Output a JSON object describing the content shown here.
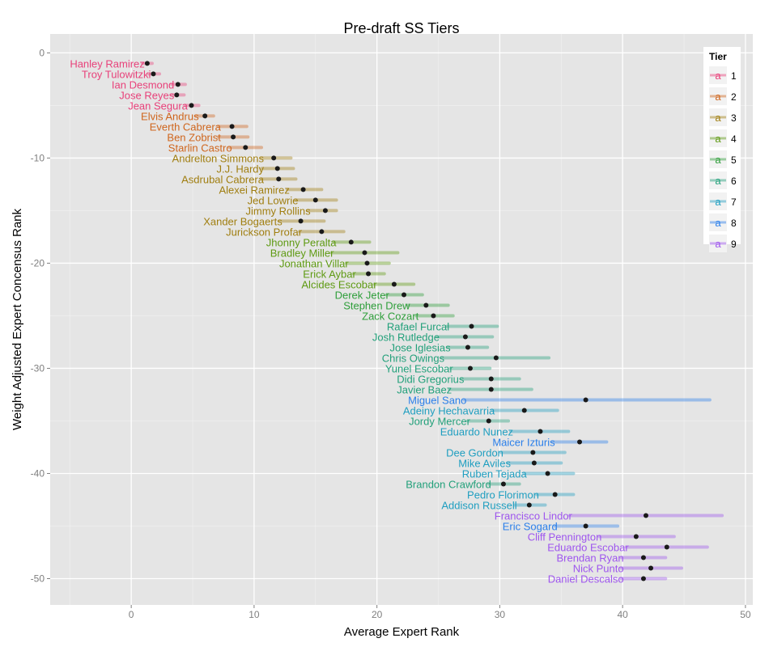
{
  "chart_data": {
    "type": "scatter",
    "title": "Pre-draft SS Tiers",
    "xlabel": "Average Expert Rank",
    "ylabel": "Weight Adjusted Expert Concensus Rank",
    "xlim": [
      -6.6,
      50.6
    ],
    "ylim": [
      -52.5,
      1.8
    ],
    "xticks": [
      0,
      10,
      20,
      30,
      40,
      50
    ],
    "yticks": [
      0,
      -10,
      -20,
      -30,
      -40,
      -50
    ],
    "grid": true,
    "legend": {
      "title": "Tier",
      "placement": "top-right",
      "key_glyph": "a",
      "entries": [
        "1",
        "2",
        "3",
        "4",
        "5",
        "6",
        "7",
        "8",
        "9"
      ]
    },
    "tier_colors": {
      "1": "#E8417A",
      "2": "#CF651C",
      "3": "#A07E10",
      "4": "#5E9A12",
      "5": "#2E9E3A",
      "6": "#22A07A",
      "7": "#1E9EC0",
      "8": "#2A7FEA",
      "9": "#9E55EE"
    },
    "points": [
      {
        "name": "Hanley Ramirez",
        "tier": "1",
        "rank": -1,
        "avg": 1.3,
        "min": 0.9,
        "max": 1.7
      },
      {
        "name": "Troy Tulowitzki",
        "tier": "1",
        "rank": -2,
        "avg": 1.8,
        "min": 1.4,
        "max": 2.3
      },
      {
        "name": "Ian Desmond",
        "tier": "1",
        "rank": -3,
        "avg": 3.8,
        "min": 3.3,
        "max": 4.4
      },
      {
        "name": "Jose Reyes",
        "tier": "1",
        "rank": -4,
        "avg": 3.7,
        "min": 3.3,
        "max": 4.3
      },
      {
        "name": "Jean Segura",
        "tier": "1",
        "rank": -5,
        "avg": 4.9,
        "min": 4.4,
        "max": 5.5
      },
      {
        "name": "Elvis Andrus",
        "tier": "2",
        "rank": -6,
        "avg": 6.0,
        "min": 5.3,
        "max": 6.7
      },
      {
        "name": "Everth Cabrera",
        "tier": "2",
        "rank": -7,
        "avg": 8.2,
        "min": 7.1,
        "max": 9.4
      },
      {
        "name": "Ben Zobrist",
        "tier": "2",
        "rank": -8,
        "avg": 8.3,
        "min": 7.1,
        "max": 9.5
      },
      {
        "name": "Starlin Castro",
        "tier": "2",
        "rank": -9,
        "avg": 9.3,
        "min": 8.0,
        "max": 10.6
      },
      {
        "name": "Andrelton Simmons",
        "tier": "3",
        "rank": -10,
        "avg": 11.6,
        "min": 10.6,
        "max": 13.0
      },
      {
        "name": "J.J. Hardy",
        "tier": "3",
        "rank": -11,
        "avg": 11.9,
        "min": 10.6,
        "max": 13.2
      },
      {
        "name": "Asdrubal Cabrera",
        "tier": "3",
        "rank": -12,
        "avg": 12.0,
        "min": 10.6,
        "max": 13.4
      },
      {
        "name": "Alexei Ramirez",
        "tier": "3",
        "rank": -13,
        "avg": 14.0,
        "min": 12.7,
        "max": 15.5
      },
      {
        "name": "Jed Lowrie",
        "tier": "3",
        "rank": -14,
        "avg": 15.0,
        "min": 13.4,
        "max": 16.7
      },
      {
        "name": "Jimmy Rollins",
        "tier": "3",
        "rank": -15,
        "avg": 15.8,
        "min": 14.4,
        "max": 16.7
      },
      {
        "name": "Xander Bogaerts",
        "tier": "3",
        "rank": -16,
        "avg": 13.8,
        "min": 12.1,
        "max": 15.7
      },
      {
        "name": "Jurickson Profar",
        "tier": "3",
        "rank": -17,
        "avg": 15.5,
        "min": 13.7,
        "max": 17.3
      },
      {
        "name": "Jhonny Peralta",
        "tier": "4",
        "rank": -18,
        "avg": 17.9,
        "min": 16.5,
        "max": 19.4
      },
      {
        "name": "Bradley Miller",
        "tier": "4",
        "rank": -19,
        "avg": 19.0,
        "min": 16.3,
        "max": 21.7
      },
      {
        "name": "Jonathan Villar",
        "tier": "4",
        "rank": -20,
        "avg": 19.2,
        "min": 17.5,
        "max": 21.0
      },
      {
        "name": "Erick Aybar",
        "tier": "4",
        "rank": -21,
        "avg": 19.3,
        "min": 18.1,
        "max": 20.6
      },
      {
        "name": "Alcides Escobar",
        "tier": "4",
        "rank": -22,
        "avg": 21.4,
        "min": 19.8,
        "max": 23.0
      },
      {
        "name": "Derek Jeter",
        "tier": "5",
        "rank": -23,
        "avg": 22.2,
        "min": 20.8,
        "max": 23.7
      },
      {
        "name": "Stephen Drew",
        "tier": "5",
        "rank": -24,
        "avg": 24.0,
        "min": 22.5,
        "max": 25.8
      },
      {
        "name": "Zack Cozart",
        "tier": "5",
        "rank": -25,
        "avg": 24.6,
        "min": 23.2,
        "max": 26.2
      },
      {
        "name": "Rafael Furcal",
        "tier": "6",
        "rank": -26,
        "avg": 27.7,
        "min": 25.7,
        "max": 29.8
      },
      {
        "name": "Josh Rutledge",
        "tier": "6",
        "rank": -27,
        "avg": 27.2,
        "min": 24.9,
        "max": 29.4
      },
      {
        "name": "Jose Iglesias",
        "tier": "6",
        "rank": -28,
        "avg": 27.4,
        "min": 25.8,
        "max": 29.0
      },
      {
        "name": "Chris Owings",
        "tier": "6",
        "rank": -29,
        "avg": 29.7,
        "min": 25.3,
        "max": 34.0
      },
      {
        "name": "Yunel Escobar",
        "tier": "6",
        "rank": -30,
        "avg": 27.6,
        "min": 26.0,
        "max": 29.2
      },
      {
        "name": "Didi Gregorius",
        "tier": "6",
        "rank": -31,
        "avg": 29.3,
        "min": 26.9,
        "max": 31.6
      },
      {
        "name": "Javier Baez",
        "tier": "6",
        "rank": -32,
        "avg": 29.3,
        "min": 25.9,
        "max": 32.6
      },
      {
        "name": "Miguel Sano",
        "tier": "8",
        "rank": -33,
        "avg": 37.0,
        "min": 27.1,
        "max": 47.1
      },
      {
        "name": "Adeiny Hechavarria",
        "tier": "7",
        "rank": -34,
        "avg": 32.0,
        "min": 29.4,
        "max": 34.7
      },
      {
        "name": "Jordy Mercer",
        "tier": "6",
        "rank": -35,
        "avg": 29.1,
        "min": 27.4,
        "max": 30.7
      },
      {
        "name": "Eduardo Nunez",
        "tier": "7",
        "rank": -36,
        "avg": 33.3,
        "min": 30.9,
        "max": 35.6
      },
      {
        "name": "Maicer Izturis",
        "tier": "8",
        "rank": -37,
        "avg": 36.5,
        "min": 34.3,
        "max": 38.7
      },
      {
        "name": "Dee Gordon",
        "tier": "7",
        "rank": -38,
        "avg": 32.7,
        "min": 30.1,
        "max": 35.3
      },
      {
        "name": "Mike Aviles",
        "tier": "7",
        "rank": -39,
        "avg": 32.8,
        "min": 30.7,
        "max": 35.0
      },
      {
        "name": "Ruben Tejada",
        "tier": "7",
        "rank": -40,
        "avg": 33.9,
        "min": 32.0,
        "max": 36.0
      },
      {
        "name": "Brandon Crawford",
        "tier": "6",
        "rank": -41,
        "avg": 30.3,
        "min": 29.1,
        "max": 31.6
      },
      {
        "name": "Pedro Florimon",
        "tier": "7",
        "rank": -42,
        "avg": 34.5,
        "min": 33.0,
        "max": 36.0
      },
      {
        "name": "Addison Russell",
        "tier": "7",
        "rank": -43,
        "avg": 32.4,
        "min": 31.2,
        "max": 33.7
      },
      {
        "name": "Francisco Lindor",
        "tier": "9",
        "rank": -44,
        "avg": 41.9,
        "min": 35.7,
        "max": 48.1
      },
      {
        "name": "Eric Sogard",
        "tier": "8",
        "rank": -45,
        "avg": 37.0,
        "min": 34.5,
        "max": 39.6
      },
      {
        "name": "Cliff Pennington",
        "tier": "9",
        "rank": -46,
        "avg": 41.1,
        "min": 38.1,
        "max": 44.2
      },
      {
        "name": "Eduardo Escobar",
        "tier": "9",
        "rank": -47,
        "avg": 43.6,
        "min": 40.3,
        "max": 46.9
      },
      {
        "name": "Brendan Ryan",
        "tier": "9",
        "rank": -48,
        "avg": 41.7,
        "min": 39.9,
        "max": 43.5
      },
      {
        "name": "Nick Punto",
        "tier": "9",
        "rank": -49,
        "avg": 42.3,
        "min": 39.9,
        "max": 44.8
      },
      {
        "name": "Daniel Descalso",
        "tier": "9",
        "rank": -50,
        "avg": 41.7,
        "min": 39.9,
        "max": 43.5
      }
    ]
  }
}
